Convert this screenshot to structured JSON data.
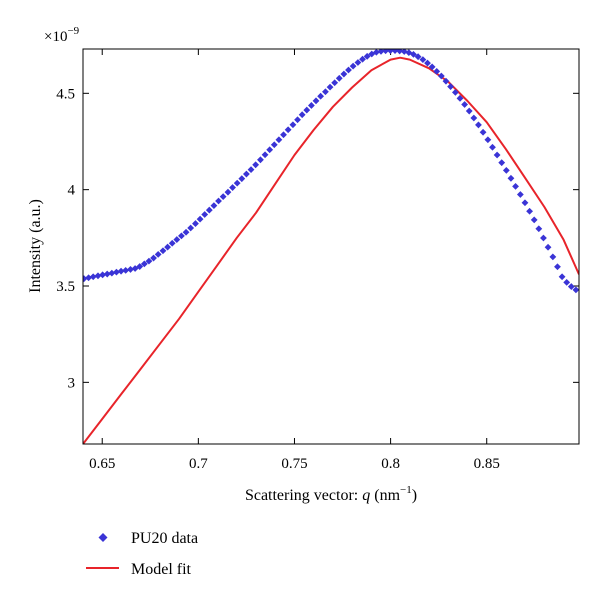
{
  "chart_data": {
    "type": "scatter",
    "xlabel_prefix": "Scattering vector: ",
    "xlabel_var": "q",
    "xlabel_unit_open": " (nm",
    "xlabel_unit_exp": "−1",
    "xlabel_unit_close": ")",
    "ylabel": "Intensity (a.u.)",
    "y_multiplier_base": "×10",
    "y_multiplier_exp": "−9",
    "xlim": [
      0.64,
      0.898
    ],
    "ylim": [
      2.68,
      4.73
    ],
    "xticks": [
      0.65,
      0.7,
      0.75,
      0.8,
      0.85
    ],
    "xtick_labels": [
      "0.65",
      "0.7",
      "0.75",
      "0.8",
      "0.85"
    ],
    "yticks": [
      3,
      3.5,
      4,
      4.5
    ],
    "ytick_labels": [
      "3",
      "3.5",
      "4",
      "4.5"
    ],
    "grid": false,
    "legend_position": "bottom-left, below plot",
    "colors": {
      "data": "#3a34d6",
      "fit": "#e8242a"
    },
    "series": [
      {
        "name": "PU20 data",
        "kind": "points",
        "marker": "diamond",
        "x": [
          0.6405,
          0.6429,
          0.6453,
          0.6478,
          0.6502,
          0.6526,
          0.655,
          0.6574,
          0.6598,
          0.6622,
          0.6647,
          0.6671,
          0.6695,
          0.6719,
          0.6743,
          0.6767,
          0.6791,
          0.6816,
          0.684,
          0.6864,
          0.6888,
          0.6912,
          0.6936,
          0.696,
          0.6985,
          0.7009,
          0.7033,
          0.7057,
          0.7081,
          0.7105,
          0.7129,
          0.7154,
          0.7178,
          0.7202,
          0.7226,
          0.725,
          0.7274,
          0.7298,
          0.7323,
          0.7347,
          0.7371,
          0.7395,
          0.7419,
          0.7443,
          0.7467,
          0.7492,
          0.7516,
          0.754,
          0.7564,
          0.7588,
          0.7612,
          0.7636,
          0.7661,
          0.7685,
          0.7709,
          0.7733,
          0.7757,
          0.7781,
          0.7805,
          0.783,
          0.7854,
          0.7878,
          0.7902,
          0.7926,
          0.795,
          0.7974,
          0.7999,
          0.8023,
          0.8047,
          0.8071,
          0.8095,
          0.8119,
          0.8143,
          0.8168,
          0.8192,
          0.8216,
          0.824,
          0.8264,
          0.8288,
          0.8312,
          0.8337,
          0.8361,
          0.8385,
          0.8409,
          0.8433,
          0.8457,
          0.8481,
          0.8506,
          0.853,
          0.8554,
          0.8578,
          0.8602,
          0.8626,
          0.865,
          0.8675,
          0.8699,
          0.8723,
          0.8747,
          0.8771,
          0.8795,
          0.8819,
          0.8844,
          0.8868,
          0.8892,
          0.8916,
          0.894,
          0.8964
        ],
        "y": [
          3.538,
          3.543,
          3.548,
          3.553,
          3.558,
          3.562,
          3.567,
          3.572,
          3.577,
          3.581,
          3.586,
          3.591,
          3.601,
          3.615,
          3.629,
          3.645,
          3.664,
          3.683,
          3.702,
          3.722,
          3.741,
          3.76,
          3.779,
          3.801,
          3.824,
          3.847,
          3.871,
          3.894,
          3.917,
          3.941,
          3.964,
          3.987,
          4.011,
          4.034,
          4.057,
          4.081,
          4.104,
          4.129,
          4.155,
          4.181,
          4.207,
          4.233,
          4.259,
          4.285,
          4.311,
          4.337,
          4.363,
          4.389,
          4.413,
          4.437,
          4.461,
          4.485,
          4.508,
          4.532,
          4.555,
          4.578,
          4.6,
          4.621,
          4.641,
          4.66,
          4.677,
          4.692,
          4.704,
          4.713,
          4.718,
          4.721,
          4.722,
          4.722,
          4.72,
          4.717,
          4.711,
          4.702,
          4.69,
          4.675,
          4.657,
          4.637,
          4.614,
          4.59,
          4.563,
          4.535,
          4.505,
          4.474,
          4.442,
          4.408,
          4.372,
          4.336,
          4.298,
          4.259,
          4.22,
          4.18,
          4.14,
          4.1,
          4.059,
          4.017,
          3.975,
          3.932,
          3.888,
          3.843,
          3.797,
          3.749,
          3.701,
          3.651,
          3.6,
          3.548,
          3.519,
          3.497,
          3.48
        ]
      },
      {
        "name": "Model fit",
        "kind": "line",
        "x": [
          0.64,
          0.65,
          0.66,
          0.67,
          0.68,
          0.69,
          0.7,
          0.71,
          0.72,
          0.73,
          0.74,
          0.75,
          0.76,
          0.77,
          0.78,
          0.79,
          0.8,
          0.805,
          0.81,
          0.82,
          0.83,
          0.84,
          0.85,
          0.86,
          0.87,
          0.88,
          0.89,
          0.898
        ],
        "y": [
          2.68,
          2.81,
          2.94,
          3.07,
          3.2,
          3.33,
          3.47,
          3.61,
          3.75,
          3.88,
          4.03,
          4.18,
          4.31,
          4.43,
          4.53,
          4.62,
          4.675,
          4.685,
          4.675,
          4.63,
          4.56,
          4.46,
          4.35,
          4.21,
          4.06,
          3.91,
          3.74,
          3.56
        ]
      }
    ]
  }
}
